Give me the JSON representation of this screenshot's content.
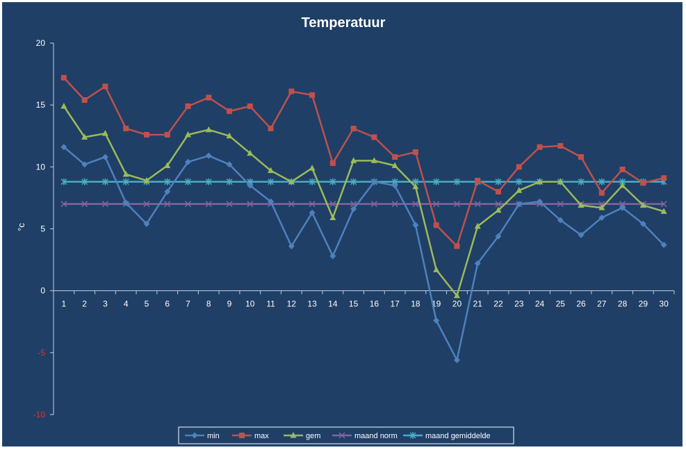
{
  "chart_data": {
    "type": "line",
    "title": "Temperatuur",
    "ylabel": "°c",
    "xlabel": "",
    "ylim": [
      -10,
      20
    ],
    "yticks": [
      -10,
      -5,
      0,
      5,
      10,
      15,
      20
    ],
    "grid": false,
    "legend_position": "bottom",
    "x": [
      "1",
      "2",
      "3",
      "4",
      "5",
      "6",
      "7",
      "8",
      "9",
      "10",
      "11",
      "12",
      "13",
      "14",
      "15",
      "16",
      "17",
      "18",
      "19",
      "20",
      "21",
      "22",
      "23",
      "24",
      "25",
      "26",
      "27",
      "28",
      "29",
      "30"
    ],
    "series": [
      {
        "name": "min",
        "color": "#4f81bd",
        "marker": "diamond",
        "values": [
          11.6,
          10.2,
          10.8,
          7.1,
          5.4,
          8.0,
          10.4,
          10.9,
          10.2,
          8.5,
          7.2,
          3.6,
          6.3,
          2.8,
          6.6,
          8.8,
          8.5,
          5.3,
          -2.4,
          -5.6,
          2.2,
          4.4,
          7.0,
          7.2,
          5.7,
          4.5,
          5.9,
          6.7,
          5.4,
          3.7
        ]
      },
      {
        "name": "max",
        "color": "#c0504d",
        "marker": "square",
        "values": [
          17.2,
          15.4,
          16.5,
          13.1,
          12.6,
          12.6,
          14.9,
          15.6,
          14.5,
          14.9,
          13.1,
          16.1,
          15.8,
          10.3,
          13.1,
          12.4,
          10.8,
          11.2,
          5.3,
          3.6,
          8.9,
          8.0,
          10.0,
          11.6,
          11.7,
          10.8,
          7.9,
          9.8,
          8.7,
          9.1
        ]
      },
      {
        "name": "gem",
        "color": "#9bbb59",
        "marker": "triangle",
        "values": [
          14.9,
          12.4,
          12.7,
          9.4,
          8.9,
          10.1,
          12.6,
          13.0,
          12.5,
          11.1,
          9.7,
          8.8,
          9.9,
          5.9,
          10.5,
          10.5,
          10.1,
          8.4,
          1.7,
          -0.4,
          5.2,
          6.5,
          8.1,
          8.8,
          8.8,
          6.9,
          6.7,
          8.5,
          6.9,
          6.4
        ]
      },
      {
        "name": "maand norm",
        "color": "#8064a2",
        "marker": "x",
        "values": [
          7.0,
          7.0,
          7.0,
          7.0,
          7.0,
          7.0,
          7.0,
          7.0,
          7.0,
          7.0,
          7.0,
          7.0,
          7.0,
          7.0,
          7.0,
          7.0,
          7.0,
          7.0,
          7.0,
          7.0,
          7.0,
          7.0,
          7.0,
          7.0,
          7.0,
          7.0,
          7.0,
          7.0,
          7.0,
          7.0
        ]
      },
      {
        "name": "maand gemiddelde",
        "color": "#4bacc6",
        "marker": "star",
        "values": [
          8.8,
          8.8,
          8.8,
          8.8,
          8.8,
          8.8,
          8.8,
          8.8,
          8.8,
          8.8,
          8.8,
          8.8,
          8.8,
          8.8,
          8.8,
          8.8,
          8.8,
          8.8,
          8.8,
          8.8,
          8.8,
          8.8,
          8.8,
          8.8,
          8.8,
          8.8,
          8.8,
          8.8,
          8.8,
          8.8
        ]
      }
    ],
    "colors": {
      "background": "#1f3f66",
      "axis": "#c8d0da",
      "tick_positive": "#ffffff",
      "tick_negative": "#e8302c",
      "legend_bg": "#1f3f66"
    }
  }
}
